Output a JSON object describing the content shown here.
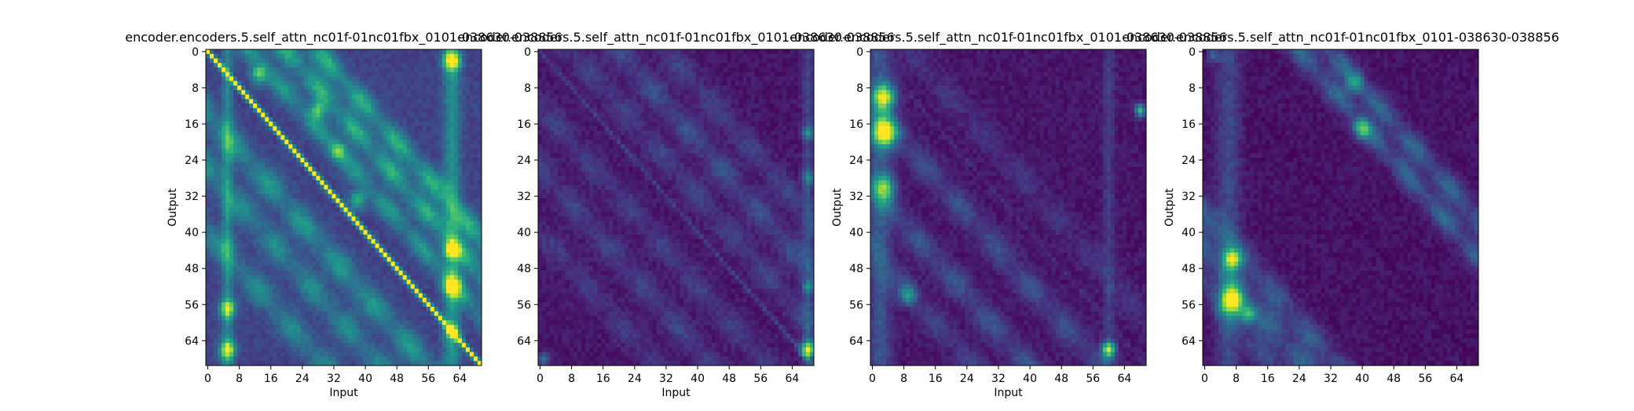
{
  "colors": {
    "colormap": "viridis",
    "cmap_stops": [
      "#440154",
      "#482878",
      "#3e4989",
      "#31688e",
      "#26828e",
      "#1f9e89",
      "#35b779",
      "#6ece58",
      "#b5de2b",
      "#fde725"
    ],
    "frame": "#000000",
    "text": "#000000"
  },
  "chart_data": [
    {
      "type": "heatmap",
      "title": "encoder.encoders.5.self_attn_nc01f-01nc01fbx_0101-038630-038856",
      "xlabel": "Input",
      "ylabel": "Output",
      "rows": 70,
      "cols": 70,
      "xticks": [
        0,
        8,
        16,
        24,
        32,
        40,
        48,
        56,
        64
      ],
      "yticks": [
        0,
        8,
        16,
        24,
        32,
        40,
        48,
        56,
        64
      ],
      "features": {
        "base": 0.2,
        "diagonal": 0.85,
        "diagonal_width": 0.6,
        "bands": [
          {
            "offset": 20,
            "strength": 0.45,
            "width": 2.5
          },
          {
            "offset": 28,
            "strength": 0.45,
            "width": 2.5
          },
          {
            "offset": -14,
            "strength": 0.35,
            "width": 3
          },
          {
            "offset": -26,
            "strength": 0.3,
            "width": 3
          },
          {
            "offset": 11,
            "strength": 0.35,
            "width": 2.5
          },
          {
            "offset": -40,
            "strength": 0.3,
            "width": 3
          }
        ],
        "columns": [
          {
            "col": 5,
            "strength": 0.25,
            "width": 1
          },
          {
            "col": 62,
            "strength": 0.3,
            "width": 1.5
          }
        ],
        "spots": [
          {
            "row": 2,
            "col": 62,
            "strength": 0.7,
            "sigma": 1.5
          },
          {
            "row": 44,
            "col": 62,
            "strength": 0.6,
            "sigma": 1.2
          },
          {
            "row": 52,
            "col": 62,
            "strength": 0.6,
            "sigma": 1.5
          },
          {
            "row": 62,
            "col": 62,
            "strength": 0.6,
            "sigma": 1.2
          },
          {
            "row": 57,
            "col": 5,
            "strength": 0.55,
            "sigma": 1.5
          },
          {
            "row": 66,
            "col": 5,
            "strength": 0.6,
            "sigma": 1.5
          },
          {
            "row": 5,
            "col": 13,
            "strength": 0.45,
            "sigma": 1.5
          },
          {
            "row": 13,
            "col": 28,
            "strength": 0.4,
            "sigma": 1.5
          },
          {
            "row": 22,
            "col": 33,
            "strength": 0.45,
            "sigma": 1.5
          },
          {
            "row": 33,
            "col": 38,
            "strength": 0.4,
            "sigma": 1.5
          }
        ],
        "seed": 11
      }
    },
    {
      "type": "heatmap",
      "title": "encoder.encoders.5.self_attn_nc01f-01nc01fbx_0101-038630-038856",
      "xlabel": "Input",
      "ylabel": "",
      "rows": 70,
      "cols": 70,
      "xticks": [
        0,
        8,
        16,
        24,
        32,
        40,
        48,
        56,
        64
      ],
      "yticks": [
        0,
        8,
        16,
        24,
        32,
        40,
        48,
        56,
        64
      ],
      "features": {
        "base": 0.06,
        "diagonal": 0.12,
        "diagonal_width": 0.6,
        "bands": [
          {
            "offset": 8,
            "strength": 0.15,
            "width": 3
          },
          {
            "offset": 20,
            "strength": 0.2,
            "width": 3
          },
          {
            "offset": 32,
            "strength": 0.15,
            "width": 3
          },
          {
            "offset": -12,
            "strength": 0.14,
            "width": 3
          },
          {
            "offset": -26,
            "strength": 0.16,
            "width": 3
          },
          {
            "offset": -40,
            "strength": 0.12,
            "width": 3
          }
        ],
        "columns": [
          {
            "col": 68,
            "strength": 0.15,
            "width": 1
          }
        ],
        "spots": [
          {
            "row": 66,
            "col": 68,
            "strength": 0.8,
            "sigma": 1.2
          },
          {
            "row": 18,
            "col": 68,
            "strength": 0.35,
            "sigma": 1
          },
          {
            "row": 28,
            "col": 68,
            "strength": 0.3,
            "sigma": 1
          },
          {
            "row": 52,
            "col": 68,
            "strength": 0.3,
            "sigma": 1
          },
          {
            "row": 68,
            "col": 1,
            "strength": 0.3,
            "sigma": 1
          }
        ],
        "seed": 23
      }
    },
    {
      "type": "heatmap",
      "title": "encoder.encoders.5.self_attn_nc01f-01nc01fbx_0101-038630-038856",
      "xlabel": "Input",
      "ylabel": "Output",
      "rows": 70,
      "cols": 70,
      "xticks": [
        0,
        8,
        16,
        24,
        32,
        40,
        48,
        56,
        64
      ],
      "yticks": [
        0,
        8,
        16,
        24,
        32,
        40,
        48,
        56,
        64
      ],
      "features": {
        "base": 0.06,
        "diagonal": 0.05,
        "diagonal_width": 0.6,
        "bands": [
          {
            "offset": -12,
            "strength": 0.2,
            "width": 3
          },
          {
            "offset": -30,
            "strength": 0.22,
            "width": 3
          },
          {
            "offset": -44,
            "strength": 0.15,
            "width": 3
          },
          {
            "offset": 10,
            "strength": 0.1,
            "width": 3
          }
        ],
        "columns": [
          {
            "col": 60,
            "strength": 0.12,
            "width": 1
          },
          {
            "col": 2,
            "strength": 0.2,
            "width": 2
          }
        ],
        "spots": [
          {
            "row": 10,
            "col": 3,
            "strength": 0.75,
            "sigma": 2
          },
          {
            "row": 18,
            "col": 3,
            "strength": 0.85,
            "sigma": 2.2
          },
          {
            "row": 30,
            "col": 3,
            "strength": 0.5,
            "sigma": 2
          },
          {
            "row": 66,
            "col": 60,
            "strength": 0.75,
            "sigma": 1.2
          },
          {
            "row": 13,
            "col": 68,
            "strength": 0.6,
            "sigma": 1
          },
          {
            "row": 54,
            "col": 9,
            "strength": 0.4,
            "sigma": 1.5
          }
        ],
        "seed": 37
      }
    },
    {
      "type": "heatmap",
      "title": "encoder.encoders.5.self_attn_nc01f-01nc01fbx_0101-038630-038856",
      "xlabel": "",
      "ylabel": "Output",
      "rows": 70,
      "cols": 70,
      "xticks": [
        0,
        8,
        16,
        24,
        32,
        40,
        48,
        56,
        64
      ],
      "yticks": [
        0,
        8,
        16,
        24,
        32,
        40,
        48,
        56,
        64
      ],
      "features": {
        "base": 0.05,
        "diagonal": -0.04,
        "diagonal_width": 0.6,
        "bands": [
          {
            "offset": 24,
            "strength": 0.3,
            "width": 2.5
          },
          {
            "offset": 32,
            "strength": 0.3,
            "width": 2.5
          },
          {
            "offset": -36,
            "strength": 0.25,
            "width": 3
          },
          {
            "offset": -44,
            "strength": 0.28,
            "width": 3
          },
          {
            "offset": -52,
            "strength": 0.2,
            "width": 3
          }
        ],
        "columns": [
          {
            "col": 6,
            "strength": 0.18,
            "width": 2
          }
        ],
        "spots": [
          {
            "row": 46,
            "col": 7,
            "strength": 0.65,
            "sigma": 1.5
          },
          {
            "row": 55,
            "col": 7,
            "strength": 0.95,
            "sigma": 1.8
          },
          {
            "row": 58,
            "col": 11,
            "strength": 0.5,
            "sigma": 1.5
          },
          {
            "row": 17,
            "col": 40,
            "strength": 0.55,
            "sigma": 1.5
          },
          {
            "row": 7,
            "col": 38,
            "strength": 0.4,
            "sigma": 1.5
          },
          {
            "row": 1,
            "col": 2,
            "strength": 0.3,
            "sigma": 1
          }
        ],
        "seed": 51
      }
    }
  ]
}
